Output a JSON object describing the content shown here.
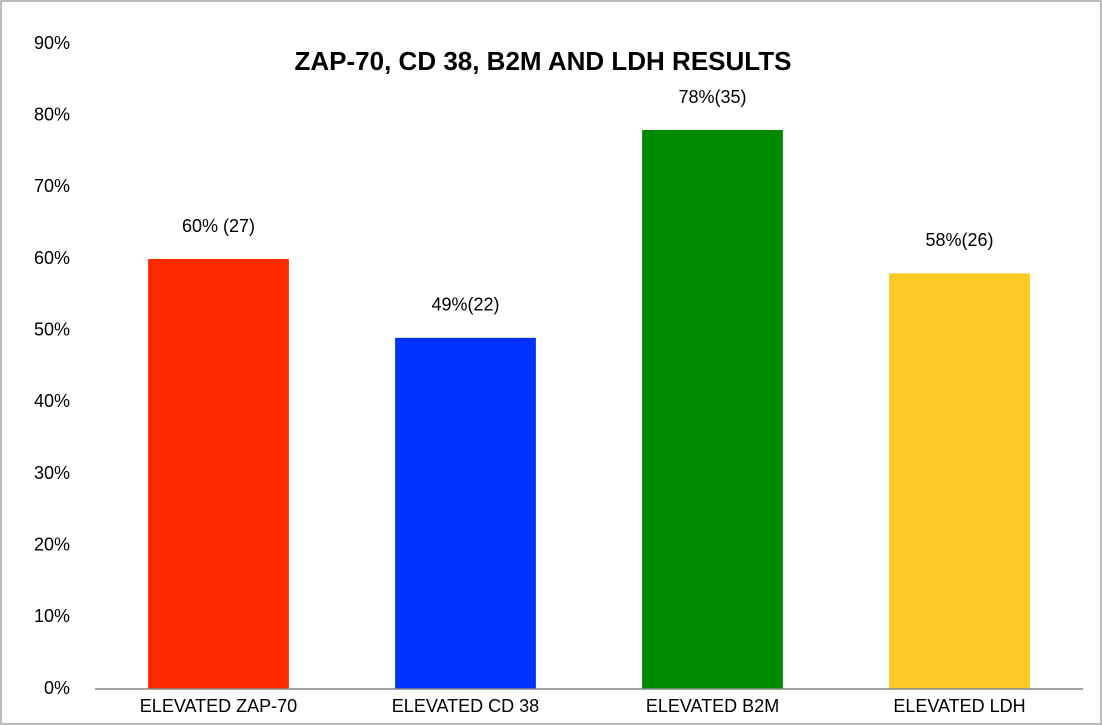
{
  "chart_data": {
    "type": "bar",
    "title": "ZAP-70, CD 38, B2M AND LDH RESULTS",
    "categories": [
      "ELEVATED ZAP-70",
      "ELEVATED CD 38",
      "ELEVATED B2M",
      "ELEVATED LDH"
    ],
    "values": [
      60,
      49,
      78,
      58
    ],
    "value_labels": [
      "60% (27)",
      "49%(22)",
      "78%(35)",
      "58%(26)"
    ],
    "colors": [
      "#ff2a00",
      "#0033ff",
      "#008a00",
      "#fdc926"
    ],
    "ylim": [
      0,
      90
    ],
    "yticks": [
      {
        "value": 0,
        "label": "0%"
      },
      {
        "value": 10,
        "label": "10%"
      },
      {
        "value": 20,
        "label": "20%"
      },
      {
        "value": 30,
        "label": "30%"
      },
      {
        "value": 40,
        "label": "40%"
      },
      {
        "value": 50,
        "label": "50%"
      },
      {
        "value": 60,
        "label": "60%"
      },
      {
        "value": 70,
        "label": "70%"
      },
      {
        "value": 80,
        "label": "80%"
      },
      {
        "value": 90,
        "label": "90%"
      }
    ],
    "grid": false
  }
}
